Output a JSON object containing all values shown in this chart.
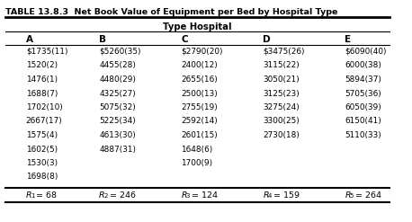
{
  "title": "TABLE 13.8.3  Net Book Value of Equipment per Bed by Hospital Type",
  "subheader": "Type Hospital",
  "col_headers": [
    "A",
    "B",
    "C",
    "D",
    "E"
  ],
  "col_data": [
    [
      "$1735(11)",
      "1520(2)",
      "1476(1)",
      "1688(7)",
      "1702(10)",
      "2667(17)",
      "1575(4)",
      "1602(5)",
      "1530(3)",
      "1698(8)"
    ],
    [
      "$5260(35)",
      "4455(28)",
      "4480(29)",
      "4325(27)",
      "5075(32)",
      "5225(34)",
      "4613(30)",
      "4887(31)",
      "",
      ""
    ],
    [
      "$2790(20)",
      "2400(12)",
      "2655(16)",
      "2500(13)",
      "2755(19)",
      "2592(14)",
      "2601(15)",
      "1648(6)",
      "1700(9)",
      ""
    ],
    [
      "$3475(26)",
      "3115(22)",
      "3050(21)",
      "3125(23)",
      "3275(24)",
      "3300(25)",
      "2730(18)",
      "",
      "",
      ""
    ],
    [
      "$6090(40)",
      "6000(38)",
      "5894(37)",
      "5705(36)",
      "6050(39)",
      "6150(41)",
      "5110(33)",
      "",
      "",
      ""
    ]
  ],
  "row_labels": [
    "R_1 = 68",
    "R_2 = 246",
    "R_3 = 124",
    "R_4 = 159",
    "R_5 = 264"
  ],
  "row_label_keys": [
    "R_1",
    "R_2",
    "R_3",
    "R_4",
    "R_5"
  ],
  "row_label_vals": [
    "68",
    "246",
    "124",
    "159",
    "264"
  ],
  "bg_color": "#ffffff",
  "text_color": "#000000",
  "header_bg": "#ffffff"
}
